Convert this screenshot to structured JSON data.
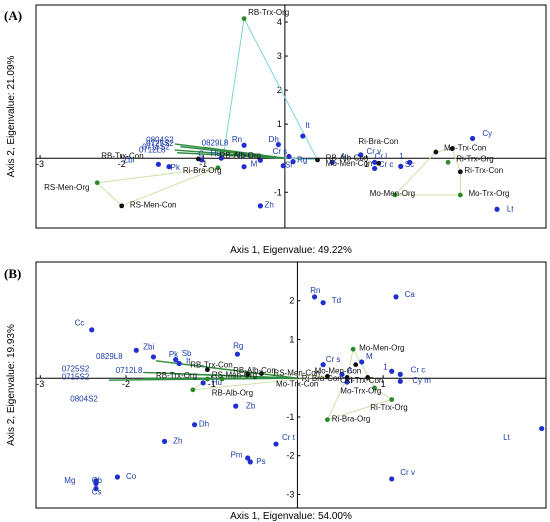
{
  "colors": {
    "species": "#1f2fd0",
    "species_label": "#1a3aa8",
    "treatment": "#111111",
    "organic": "#2a8a2a",
    "vector": "#2e8b40",
    "hull": "#cfe0a8",
    "hull_alt": "#7fd3d3"
  },
  "chart_data": [
    {
      "type": "scatter",
      "panel_label": "(A)",
      "xlabel": "Axis 1, Eigenvalue: 49.22%",
      "ylabel": "Axis 2, Eigenvalue: 21.09%",
      "xlim": [
        -3.05,
        3.2
      ],
      "ylim": [
        -2.05,
        4.5
      ],
      "x_ticks": [
        {
          "v": -3,
          "label": "-3"
        },
        {
          "v": -2,
          "label": "-2"
        },
        {
          "v": -1,
          "label": "-1"
        },
        {
          "v": 1,
          "label": "1"
        }
      ],
      "y_ticks": [
        {
          "v": 4,
          "label": "4"
        },
        {
          "v": 3,
          "label": "3"
        },
        {
          "v": 2,
          "label": "2"
        },
        {
          "v": 1,
          "label": "1"
        },
        {
          "v": -1,
          "label": "-1"
        }
      ],
      "vectors": [
        {
          "label": "0804S2",
          "x": -1.35,
          "y": 0.42,
          "lx": -1.7,
          "ly": 0.46
        },
        {
          "label": "0725S2",
          "x": -1.28,
          "y": 0.34,
          "lx": -1.7,
          "ly": 0.36
        },
        {
          "label": "0829L8",
          "x": -1.0,
          "y": 0.32,
          "lx": -1.02,
          "ly": 0.38
        },
        {
          "label": "0715S2",
          "x": -1.35,
          "y": 0.24,
          "lx": -1.75,
          "ly": 0.26
        },
        {
          "label": "0712L8",
          "x": -1.32,
          "y": 0.16,
          "lx": -1.79,
          "ly": 0.17
        }
      ],
      "species": [
        {
          "label": "Zbi",
          "x": -1.55,
          "y": -0.18,
          "lx": -1.98,
          "ly": -0.12
        },
        {
          "label": "Pk",
          "x": -1.42,
          "y": -0.25,
          "lx": -1.4,
          "ly": -0.34
        },
        {
          "label": "C",
          "x": -1.02,
          "y": -0.05,
          "lx": -1.06,
          "ly": 0.05
        },
        {
          "label": "Hu",
          "x": -0.78,
          "y": 0.0,
          "lx": -0.91,
          "ly": 0.06
        },
        {
          "label": "Rn",
          "x": -0.5,
          "y": 0.38,
          "lx": -0.65,
          "ly": 0.47
        },
        {
          "label": "Cr t",
          "x": -0.3,
          "y": -0.06,
          "lx": -0.58,
          "ly": -0.02
        },
        {
          "label": "Cr s",
          "x": 0.05,
          "y": 0.05,
          "lx": -0.15,
          "ly": 0.12
        },
        {
          "label": "M",
          "x": -0.5,
          "y": -0.25,
          "lx": -0.42,
          "ly": -0.24
        },
        {
          "label": "Sr",
          "x": -0.02,
          "y": -0.22,
          "lx": 0.0,
          "ly": -0.27
        },
        {
          "label": "Rg",
          "x": 0.1,
          "y": -0.1,
          "lx": 0.15,
          "ly": -0.12
        },
        {
          "label": "Dh",
          "x": -0.08,
          "y": 0.4,
          "lx": -0.2,
          "ly": 0.48
        },
        {
          "label": "It",
          "x": 0.22,
          "y": 0.65,
          "lx": 0.25,
          "ly": 0.88
        },
        {
          "label": "Zh",
          "x": -0.3,
          "y": -1.4,
          "lx": -0.25,
          "ly": -1.45
        },
        {
          "label": "A",
          "x": 0.58,
          "y": -0.12,
          "lx": 0.68,
          "ly": -0.02
        },
        {
          "label": "Cr v",
          "x": 0.93,
          "y": 0.1,
          "lx": 1.0,
          "ly": 0.13
        },
        {
          "label": "Cr l",
          "x": 1.1,
          "y": -0.12,
          "lx": 1.1,
          "ly": -0.02
        },
        {
          "label": "Cr c",
          "x": 1.1,
          "y": -0.3,
          "lx": 1.15,
          "ly": -0.26
        },
        {
          "label": "Sc",
          "x": 1.42,
          "y": -0.24,
          "lx": 1.47,
          "ly": -0.26
        },
        {
          "label": "Cy",
          "x": 2.3,
          "y": 0.58,
          "lx": 2.42,
          "ly": 0.65
        },
        {
          "label": "Lt",
          "x": 2.6,
          "y": -1.5,
          "lx": 2.72,
          "ly": -1.56
        },
        {
          "label": "1",
          "x": 1.53,
          "y": -0.12,
          "lx": 1.4,
          "ly": -0.02
        }
      ],
      "treatments": [
        {
          "label": "RB-Trx-Org",
          "x": -0.5,
          "y": 4.1,
          "lx": -0.45,
          "ly": 4.2,
          "group": "organic"
        },
        {
          "label": "RB-Alb-Org",
          "x": -0.6,
          "y": 0.15,
          "lx": -0.8,
          "ly": 0.0,
          "group": "organic"
        },
        {
          "label": "RB-Trx-Con",
          "x": -1.06,
          "y": -0.02,
          "lx": -2.25,
          "ly": -0.01,
          "group": "conventional"
        },
        {
          "label": "Ri-Bra-Org",
          "x": -0.82,
          "y": -0.28,
          "lx": -1.25,
          "ly": -0.44,
          "group": "organic"
        },
        {
          "label": "RS-Men-Org",
          "x": -2.3,
          "y": -0.72,
          "lx": -2.95,
          "ly": -0.93,
          "group": "organic"
        },
        {
          "label": "RS-Men-Con",
          "x": -2.0,
          "y": -1.4,
          "lx": -1.9,
          "ly": -1.45,
          "group": "conventional"
        },
        {
          "label": "Ri-Bra-Con",
          "x": 1.85,
          "y": 0.18,
          "lx": 0.9,
          "ly": 0.42,
          "group": "conventional"
        },
        {
          "label": "Mo-Trx-Con",
          "x": 2.05,
          "y": 0.28,
          "lx": 1.95,
          "ly": 0.22,
          "group": "conventional"
        },
        {
          "label": "RB-Alb-Con",
          "x": 0.4,
          "y": -0.05,
          "lx": 0.5,
          "ly": -0.07,
          "group": "conventional"
        },
        {
          "label": "Mo-Men-Con",
          "x": 1.15,
          "y": -0.15,
          "lx": 0.5,
          "ly": -0.23,
          "group": "conventional"
        },
        {
          "label": "Ri-Trx-Org",
          "x": 2.0,
          "y": -0.12,
          "lx": 2.1,
          "ly": -0.09,
          "group": "organic"
        },
        {
          "label": "Ri-Trx-Con",
          "x": 2.15,
          "y": -0.4,
          "lx": 2.2,
          "ly": -0.43,
          "group": "conventional"
        },
        {
          "label": "Mo-Men-Org",
          "x": 1.35,
          "y": -1.08,
          "lx": 1.04,
          "ly": -1.11,
          "group": "organic"
        },
        {
          "label": "Mo-Trx-Org",
          "x": 2.15,
          "y": -1.08,
          "lx": 2.25,
          "ly": -1.11,
          "group": "organic"
        }
      ],
      "hulls": [
        {
          "points": [
            [
              -0.5,
              4.1
            ],
            [
              -0.75,
              0.12
            ],
            [
              0.4,
              -0.05
            ]
          ],
          "color": "hull_alt"
        },
        {
          "points": [
            [
              -2.3,
              -0.72
            ],
            [
              -2.0,
              -1.4
            ],
            [
              -0.82,
              -0.28
            ]
          ],
          "color": "hull"
        },
        {
          "points": [
            [
              1.85,
              0.18
            ],
            [
              2.05,
              0.28
            ],
            [
              2.15,
              -0.4
            ],
            [
              2.15,
              -1.08
            ],
            [
              1.35,
              -1.08
            ]
          ],
          "color": "hull"
        }
      ]
    },
    {
      "type": "scatter",
      "panel_label": "(B)",
      "xlabel": "Axis 1, Eigenvalue: 54.00%",
      "ylabel": "Axis 2, Eigenvalue: 19.93%",
      "xlim": [
        -3.05,
        2.9
      ],
      "ylim": [
        -3.35,
        3.0
      ],
      "x_ticks": [
        {
          "v": -3,
          "label": "-3"
        },
        {
          "v": -2,
          "label": "-2"
        },
        {
          "v": -1,
          "label": "-1"
        },
        {
          "v": 1,
          "label": "1"
        }
      ],
      "y_ticks": [
        {
          "v": 2,
          "label": "2"
        },
        {
          "v": 1,
          "label": "1"
        },
        {
          "v": -1,
          "label": "-1"
        },
        {
          "v": -2,
          "label": "-2"
        },
        {
          "v": -3,
          "label": "-3"
        }
      ],
      "vectors": [
        {
          "label": "0829L8",
          "x": -1.65,
          "y": 0.45,
          "lx": -2.35,
          "ly": 0.5
        },
        {
          "label": "0725S2",
          "x": -1.8,
          "y": 0.15,
          "lx": -2.75,
          "ly": 0.17
        },
        {
          "label": "0712L8",
          "x": -1.5,
          "y": 0.12,
          "lx": -2.12,
          "ly": 0.13
        },
        {
          "label": "0715S2",
          "x": -1.8,
          "y": 0.0,
          "lx": -2.75,
          "ly": -0.03
        },
        {
          "label": "0804S2",
          "x": -2.2,
          "y": -0.05,
          "lx": -2.65,
          "ly": -0.6
        }
      ],
      "species": [
        {
          "label": "Cc",
          "x": -2.4,
          "y": 1.25,
          "lx": -2.6,
          "ly": 1.36
        },
        {
          "label": "Zbi",
          "x": -1.88,
          "y": 0.72,
          "lx": -1.8,
          "ly": 0.74
        },
        {
          "label": "Pk",
          "x": -1.68,
          "y": 0.55,
          "lx": -1.5,
          "ly": 0.55
        },
        {
          "label": "Sb",
          "x": -1.42,
          "y": 0.48,
          "lx": -1.35,
          "ly": 0.57
        },
        {
          "label": "It",
          "x": -1.38,
          "y": 0.38,
          "lx": -1.3,
          "ly": 0.38
        },
        {
          "label": "Rg",
          "x": -0.7,
          "y": 0.62,
          "lx": -0.75,
          "ly": 0.77
        },
        {
          "label": "Hu",
          "x": -1.1,
          "y": -0.12,
          "lx": -1.0,
          "ly": -0.17
        },
        {
          "label": "Zb",
          "x": -0.72,
          "y": -0.72,
          "lx": -0.6,
          "ly": -0.78
        },
        {
          "label": "Dh",
          "x": -1.2,
          "y": -1.2,
          "lx": -1.15,
          "ly": -1.25
        },
        {
          "label": "Zh",
          "x": -1.55,
          "y": -1.63,
          "lx": -1.45,
          "ly": -1.68
        },
        {
          "label": "Pm",
          "x": -0.58,
          "y": -2.06,
          "lx": -0.78,
          "ly": -2.05
        },
        {
          "label": "Ps",
          "x": -0.55,
          "y": -2.16,
          "lx": -0.48,
          "ly": -2.21
        },
        {
          "label": "Cr t",
          "x": -0.25,
          "y": -1.7,
          "lx": -0.18,
          "ly": -1.6
        },
        {
          "label": "Co",
          "x": -2.1,
          "y": -2.55,
          "lx": -2.0,
          "ly": -2.6
        },
        {
          "label": "Mg",
          "x": -2.35,
          "y": -2.65,
          "lx": -2.72,
          "ly": -2.7
        },
        {
          "label": "Cb",
          "x": -2.35,
          "y": -2.72,
          "lx": -2.4,
          "ly": -2.7
        },
        {
          "label": "Cs",
          "x": -2.35,
          "y": -2.85,
          "lx": -2.4,
          "ly": -3.0
        },
        {
          "label": "Rn",
          "x": 0.2,
          "y": 2.1,
          "lx": 0.15,
          "ly": 2.2
        },
        {
          "label": "Td",
          "x": 0.3,
          "y": 1.95,
          "lx": 0.4,
          "ly": 1.94
        },
        {
          "label": "Ca",
          "x": 1.15,
          "y": 2.1,
          "lx": 1.25,
          "ly": 2.1
        },
        {
          "label": "Cr s",
          "x": 0.3,
          "y": 0.35,
          "lx": 0.33,
          "ly": 0.42
        },
        {
          "label": "M",
          "x": 0.75,
          "y": 0.42,
          "lx": 0.8,
          "ly": 0.49
        },
        {
          "label": "A",
          "x": 0.52,
          "y": 0.1,
          "lx": 0.58,
          "ly": 0.14
        },
        {
          "label": "Cr l",
          "x": 0.58,
          "y": -0.1,
          "lx": 0.5,
          "ly": -0.12
        },
        {
          "label": "Cr c",
          "x": 1.2,
          "y": 0.1,
          "lx": 1.32,
          "ly": 0.15
        },
        {
          "label": "Cy m",
          "x": 1.2,
          "y": -0.08,
          "lx": 1.34,
          "ly": -0.12
        },
        {
          "label": "Lt",
          "x": 2.85,
          "y": -1.3,
          "lx": 2.4,
          "ly": -1.6
        },
        {
          "label": "Cr v",
          "x": 1.1,
          "y": -2.6,
          "lx": 1.2,
          "ly": -2.5
        },
        {
          "label": "1",
          "x": 1.1,
          "y": 0.18,
          "lx": 1.0,
          "ly": 0.22
        }
      ],
      "treatments": [
        {
          "label": "RB-Trx-Con",
          "x": -1.05,
          "y": 0.22,
          "lx": -1.25,
          "ly": 0.28,
          "group": "conventional"
        },
        {
          "label": "RB-Alb-Con",
          "x": -0.58,
          "y": 0.1,
          "lx": -0.75,
          "ly": 0.13,
          "group": "conventional"
        },
        {
          "label": "RB-Trx-Org",
          "x": -1.05,
          "y": -0.02,
          "lx": -1.65,
          "ly": 0.0,
          "group": "organic"
        },
        {
          "label": "RS-Men-Org",
          "x": -0.88,
          "y": -0.02,
          "lx": -1.0,
          "ly": 0.02,
          "group": "organic"
        },
        {
          "label": "RB-Alb-Org",
          "x": -1.22,
          "y": -0.3,
          "lx": -1.0,
          "ly": -0.45,
          "group": "organic"
        },
        {
          "label": "RS-Men-Con",
          "x": -0.42,
          "y": 0.12,
          "lx": -0.28,
          "ly": 0.07,
          "group": "conventional"
        },
        {
          "label": "Mo-Men-Org",
          "x": 0.65,
          "y": 0.75,
          "lx": 0.72,
          "ly": 0.72,
          "group": "organic"
        },
        {
          "label": "Mo-Men-Con",
          "x": 0.68,
          "y": 0.35,
          "lx": 0.2,
          "ly": 0.12,
          "group": "conventional"
        },
        {
          "label": "Ri-Bra-Con",
          "x": 0.35,
          "y": 0.05,
          "lx": 0.05,
          "ly": -0.07,
          "group": "conventional"
        },
        {
          "label": "Ri-Trx-Con",
          "x": 0.82,
          "y": 0.02,
          "lx": 0.55,
          "ly": -0.12,
          "group": "conventional"
        },
        {
          "label": "Mo-Trx-Con",
          "x": 0.58,
          "y": 0.02,
          "lx": -0.25,
          "ly": -0.22,
          "group": "conventional"
        },
        {
          "label": "Mo-Trx-Org",
          "x": 0.9,
          "y": -0.25,
          "lx": 0.5,
          "ly": -0.4,
          "group": "organic"
        },
        {
          "label": "Ri-Bra-Org",
          "x": 0.35,
          "y": -1.07,
          "lx": 0.4,
          "ly": -1.12,
          "group": "organic"
        },
        {
          "label": "Ri-Trx-Org",
          "x": 1.1,
          "y": -0.55,
          "lx": 0.85,
          "ly": -0.82,
          "group": "organic"
        }
      ],
      "hulls": [
        {
          "points": [
            [
              -1.22,
              -0.3
            ],
            [
              -1.05,
              -0.02
            ],
            [
              -0.88,
              -0.02
            ],
            [
              -0.42,
              0.12
            ],
            [
              0.35,
              0.05
            ]
          ],
          "color": "hull"
        },
        {
          "points": [
            [
              0.65,
              0.75
            ],
            [
              0.9,
              -0.25
            ],
            [
              1.1,
              -0.55
            ],
            [
              0.35,
              -1.07
            ],
            [
              0.58,
              0.02
            ]
          ],
          "color": "hull"
        }
      ]
    }
  ]
}
